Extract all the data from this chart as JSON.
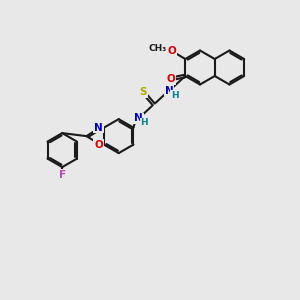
{
  "bg_color": "#e8e8e8",
  "bond_color": "#1a1a1a",
  "bond_lw": 1.5,
  "dbo": 0.07,
  "atom_colors": {
    "O": "#dd0000",
    "N": "#0000cc",
    "S": "#aaaa00",
    "F": "#bb44bb",
    "H": "#008888",
    "C": "#1a1a1a"
  },
  "font_size": 7.5,
  "small_font": 6.5,
  "figsize": [
    3.0,
    3.0
  ],
  "dpi": 100,
  "xlim": [
    -1,
    11
  ],
  "ylim": [
    -1,
    11
  ]
}
